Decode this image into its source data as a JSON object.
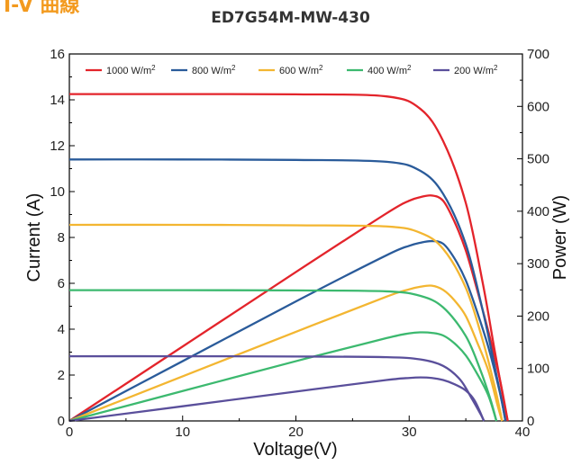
{
  "header": {
    "heading": "I-V 曲線",
    "model": "ED7G54M-MW-430"
  },
  "chart_data": {
    "type": "line",
    "title": "ED7G54M-MW-430",
    "xlabel": "Voltage(V)",
    "ylabel": "Current (A)",
    "y2label": "Power (W)",
    "xlim": [
      0,
      40
    ],
    "ylim": [
      0,
      16
    ],
    "y2lim": [
      0,
      700
    ],
    "xticks": [
      "0",
      "10",
      "20",
      "30",
      "40"
    ],
    "yticks": [
      "0",
      "2",
      "4",
      "6",
      "8",
      "10",
      "12",
      "14",
      "16"
    ],
    "y2ticks": [
      "0",
      "100",
      "200",
      "300",
      "400",
      "500",
      "600",
      "700"
    ],
    "legend_position": "top",
    "series": [
      {
        "name": "1000 W/m²",
        "sup_base": "1000 W/m",
        "color": "#e3242b",
        "iv": [
          [
            0,
            14.25
          ],
          [
            10,
            14.25
          ],
          [
            20,
            14.24
          ],
          [
            28,
            14.15
          ],
          [
            31,
            13.6
          ],
          [
            33,
            12.2
          ],
          [
            35,
            9.5
          ],
          [
            36.5,
            6.0
          ],
          [
            37.5,
            3.2
          ],
          [
            38.3,
            1.0
          ],
          [
            38.7,
            0
          ]
        ],
        "pv": [
          [
            0,
            0
          ],
          [
            10,
            142
          ],
          [
            20,
            284
          ],
          [
            28,
            396
          ],
          [
            30,
            420
          ],
          [
            31,
            427
          ],
          [
            32,
            430
          ],
          [
            33,
            420
          ],
          [
            34,
            380
          ],
          [
            35,
            325
          ],
          [
            36,
            250
          ],
          [
            37,
            170
          ],
          [
            38,
            80
          ],
          [
            38.7,
            0
          ]
        ]
      },
      {
        "name": "800 W/m²",
        "sup_base": "800 W/m",
        "color": "#2a5b9a",
        "iv": [
          [
            0,
            11.4
          ],
          [
            10,
            11.4
          ],
          [
            20,
            11.38
          ],
          [
            28,
            11.3
          ],
          [
            31,
            10.9
          ],
          [
            33,
            9.9
          ],
          [
            35,
            7.7
          ],
          [
            36.5,
            4.8
          ],
          [
            37.5,
            2.5
          ],
          [
            38.2,
            0.8
          ],
          [
            38.5,
            0
          ]
        ],
        "pv": [
          [
            0,
            0
          ],
          [
            10,
            114
          ],
          [
            20,
            228
          ],
          [
            28,
            316
          ],
          [
            30,
            334
          ],
          [
            31,
            340
          ],
          [
            32,
            343
          ],
          [
            33,
            338
          ],
          [
            34,
            310
          ],
          [
            35,
            268
          ],
          [
            36,
            208
          ],
          [
            37,
            140
          ],
          [
            38,
            55
          ],
          [
            38.5,
            0
          ]
        ]
      },
      {
        "name": "600 W/m²",
        "sup_base": "600 W/m",
        "color": "#f3b631",
        "iv": [
          [
            0,
            8.55
          ],
          [
            10,
            8.55
          ],
          [
            20,
            8.53
          ],
          [
            28,
            8.48
          ],
          [
            31,
            8.2
          ],
          [
            33,
            7.5
          ],
          [
            35,
            5.8
          ],
          [
            36.5,
            3.5
          ],
          [
            37.5,
            1.6
          ],
          [
            38,
            0.5
          ],
          [
            38.2,
            0
          ]
        ],
        "pv": [
          [
            0,
            0
          ],
          [
            10,
            85
          ],
          [
            20,
            170
          ],
          [
            28,
            237
          ],
          [
            30,
            251
          ],
          [
            31,
            256
          ],
          [
            32,
            258
          ],
          [
            33,
            250
          ],
          [
            34,
            230
          ],
          [
            35,
            200
          ],
          [
            36,
            150
          ],
          [
            37,
            95
          ],
          [
            37.8,
            30
          ],
          [
            38.2,
            0
          ]
        ]
      },
      {
        "name": "400 W/m²",
        "sup_base": "400 W/m",
        "color": "#3cb96f",
        "iv": [
          [
            0,
            5.7
          ],
          [
            10,
            5.7
          ],
          [
            20,
            5.69
          ],
          [
            28,
            5.65
          ],
          [
            31,
            5.45
          ],
          [
            33,
            4.95
          ],
          [
            35,
            3.7
          ],
          [
            36.3,
            2.2
          ],
          [
            37.2,
            0.9
          ],
          [
            37.7,
            0
          ]
        ],
        "pv": [
          [
            0,
            0
          ],
          [
            10,
            57
          ],
          [
            20,
            114
          ],
          [
            28,
            158
          ],
          [
            30,
            167
          ],
          [
            31,
            169
          ],
          [
            32,
            168
          ],
          [
            33,
            163
          ],
          [
            34,
            148
          ],
          [
            35,
            125
          ],
          [
            36,
            90
          ],
          [
            37,
            48
          ],
          [
            37.7,
            0
          ]
        ]
      },
      {
        "name": "200 W/m²",
        "sup_base": "200 W/m",
        "color": "#5a4f9b",
        "iv": [
          [
            0,
            2.82
          ],
          [
            10,
            2.82
          ],
          [
            20,
            2.81
          ],
          [
            28,
            2.78
          ],
          [
            31,
            2.68
          ],
          [
            33,
            2.4
          ],
          [
            34.5,
            1.8
          ],
          [
            35.5,
            1.0
          ],
          [
            36.3,
            0.3
          ],
          [
            36.6,
            0
          ]
        ],
        "pv": [
          [
            0,
            0
          ],
          [
            10,
            28
          ],
          [
            20,
            56
          ],
          [
            28,
            78
          ],
          [
            30,
            82
          ],
          [
            31,
            83
          ],
          [
            32,
            82
          ],
          [
            33,
            78
          ],
          [
            34,
            70
          ],
          [
            35,
            58
          ],
          [
            35.8,
            38
          ],
          [
            36.6,
            0
          ]
        ]
      }
    ]
  }
}
